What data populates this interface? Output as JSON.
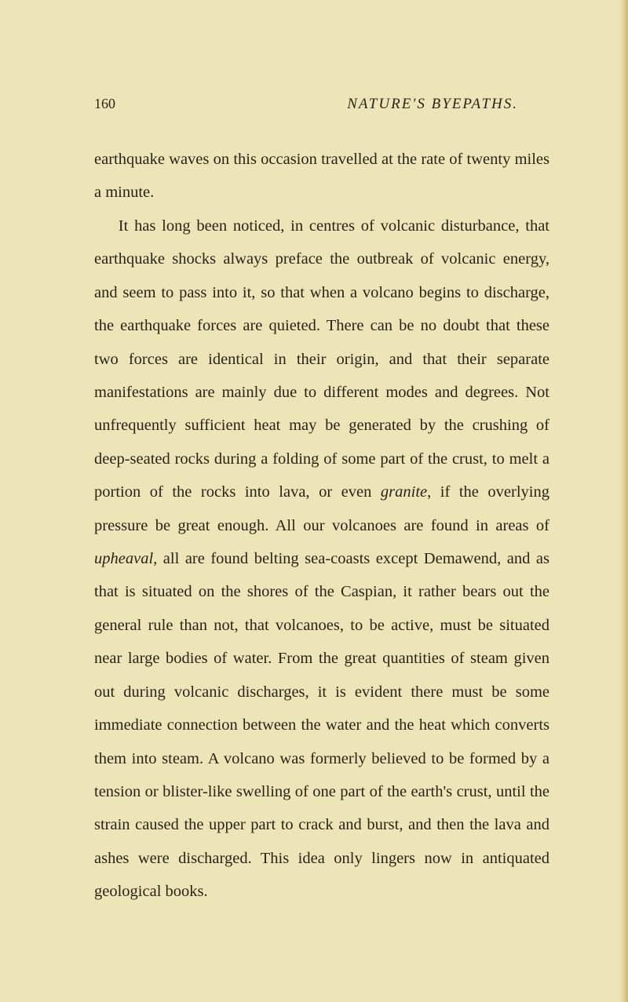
{
  "page": {
    "number": "160",
    "runningTitle": "NATURE'S BYEPATHS.",
    "background_color": "#ede4b8",
    "text_color": "#2a2418",
    "font_family": "Georgia, serif",
    "body_fontsize": 20.5,
    "line_height": 2.07,
    "paragraphs": {
      "p1_part1": "earthquake waves on this occasion travelled at the rate of twenty miles a minute.",
      "p2_part1": "It has long been noticed, in centres of volcanic disturbance, that earthquake shocks always preface the outbreak of volcanic energy, and seem to pass into it, so that when a volcano begins to discharge, the earthquake forces are quieted. There can be no doubt that these two forces are identical in their origin, and that their separate manifestations are mainly due to different modes and degrees. Not unfrequently sufficient heat may be generated by the crushing of deep-seated rocks during a folding of some part of the crust, to melt a portion of the rocks into lava, or even ",
      "p2_italic1": "granite",
      "p2_part2": ", if the overlying pressure be great enough. All our volcanoes are found in areas of ",
      "p2_italic2": "upheaval",
      "p2_part3": ", all are found belting sea-coasts except Demawend, and as that is situated on the shores of the Caspian, it rather bears out the general rule than not, that volcanoes, to be active, must be situated near large bodies of water. From the great quantities of steam given out during volcanic discharges, it is evident there must be some immediate connection between the water and the heat which converts them into steam. A volcano was formerly believed to be formed by a tension or blister-like swelling of one part of the earth's crust, until the strain caused the upper part to crack and burst, and then the lava and ashes were discharged. This idea only lingers now in antiquated geological books."
    }
  }
}
